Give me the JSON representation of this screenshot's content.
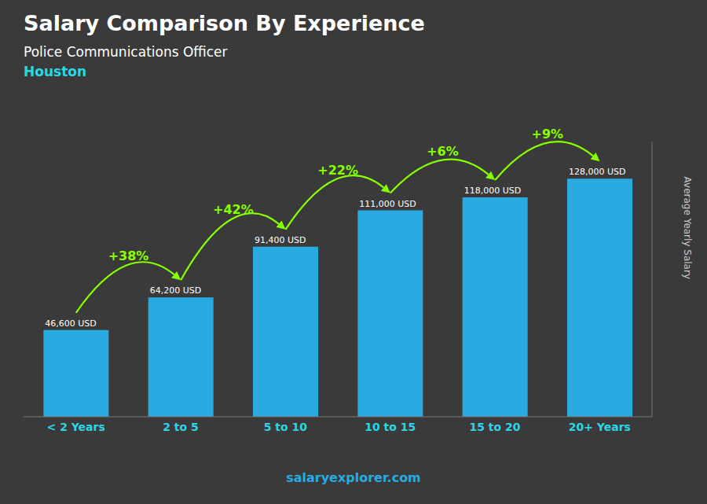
{
  "chart_data": {
    "type": "bar",
    "title": "Salary Comparison By Experience",
    "subtitle": [
      "Police Communications Officer",
      "Houston"
    ],
    "categories": [
      "< 2 Years",
      "2 to 5",
      "5 to 10",
      "10 to 15",
      "15 to 20",
      "20+ Years"
    ],
    "values": [
      46600,
      64200,
      91400,
      111000,
      118000,
      128000
    ],
    "value_labels": [
      "46,600 USD",
      "64,200 USD",
      "91,400 USD",
      "111,000 USD",
      "118,000 USD",
      "128,000 USD"
    ],
    "data_labels": true,
    "color": "#29ABE2",
    "ylabel": "Average Yearly Salary",
    "ylim": [
      0,
      148000
    ],
    "tick_labels": "x",
    "grid": false,
    "annotations": [
      {
        "text": "+38%",
        "from": "< 2 Years",
        "to": "2 to 5",
        "color": "#88FF00"
      },
      {
        "text": "+42%",
        "from": "2 to 5",
        "to": "5 to 10",
        "color": "#88FF00"
      },
      {
        "text": "+22%",
        "from": "5 to 10",
        "to": "10 to 15",
        "color": "#88FF00"
      },
      {
        "text": "+6%",
        "from": "10 to 15",
        "to": "15 to 20",
        "color": "#88FF00"
      },
      {
        "text": "+9%",
        "from": "15 to 20",
        "to": "20+ Years",
        "color": "#88FF00"
      },
      {
        "text": "salaryexplorer.com"
      }
    ]
  }
}
